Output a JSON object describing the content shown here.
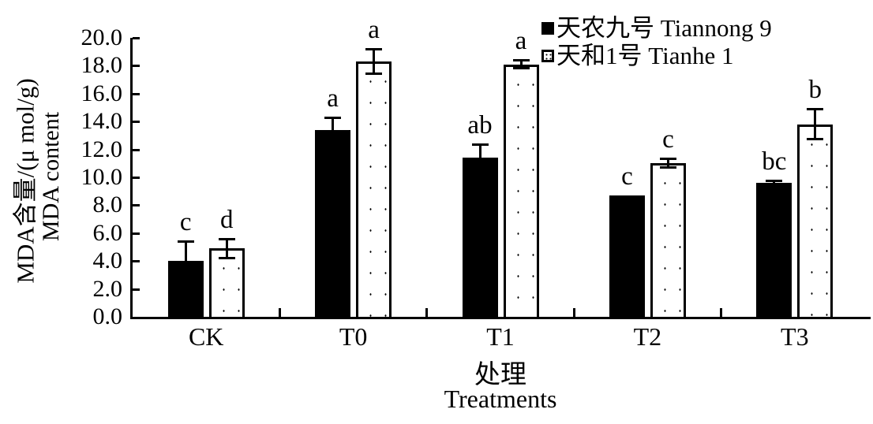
{
  "figure": {
    "background": "#ffffff",
    "ink_color": "#000000"
  },
  "chart_data": {
    "type": "bar",
    "title": "",
    "categories": [
      "CK",
      "T0",
      "T1",
      "T2",
      "T3"
    ],
    "series": [
      {
        "name": "天农九号 Tiannong 9",
        "marker": "filled-black-square",
        "fill": "#000000",
        "values": [
          4.0,
          13.4,
          11.4,
          8.7,
          9.6
        ],
        "errors": [
          1.4,
          0.9,
          1.0,
          0,
          0.2
        ],
        "sig_letters": [
          "c",
          "a",
          "ab",
          "c",
          "bc"
        ]
      },
      {
        "name": "天和1号 Tianhe 1",
        "marker": "open-dotted-square",
        "fill": "#ffffff",
        "values": [
          4.9,
          18.3,
          18.1,
          11.0,
          13.8
        ],
        "errors": [
          0.7,
          0.9,
          0.3,
          0.35,
          1.1
        ],
        "sig_letters": [
          "d",
          "a",
          "a",
          "c",
          "b"
        ]
      }
    ],
    "xlabel_zh": "处理",
    "xlabel_en": "Treatments",
    "ylabel_zh": "MDA含量/(μ mol/g)",
    "ylabel_en": "MDA content",
    "ylim": [
      0,
      20
    ],
    "ytick_step": 2,
    "ytick_labels": [
      "0.0",
      "2.0",
      "4.0",
      "6.0",
      "8.0",
      "10.0",
      "12.0",
      "14.0",
      "16.0",
      "18.0",
      "20.0"
    ],
    "grid": false,
    "legend_position": "top-right",
    "error_bars": true
  }
}
